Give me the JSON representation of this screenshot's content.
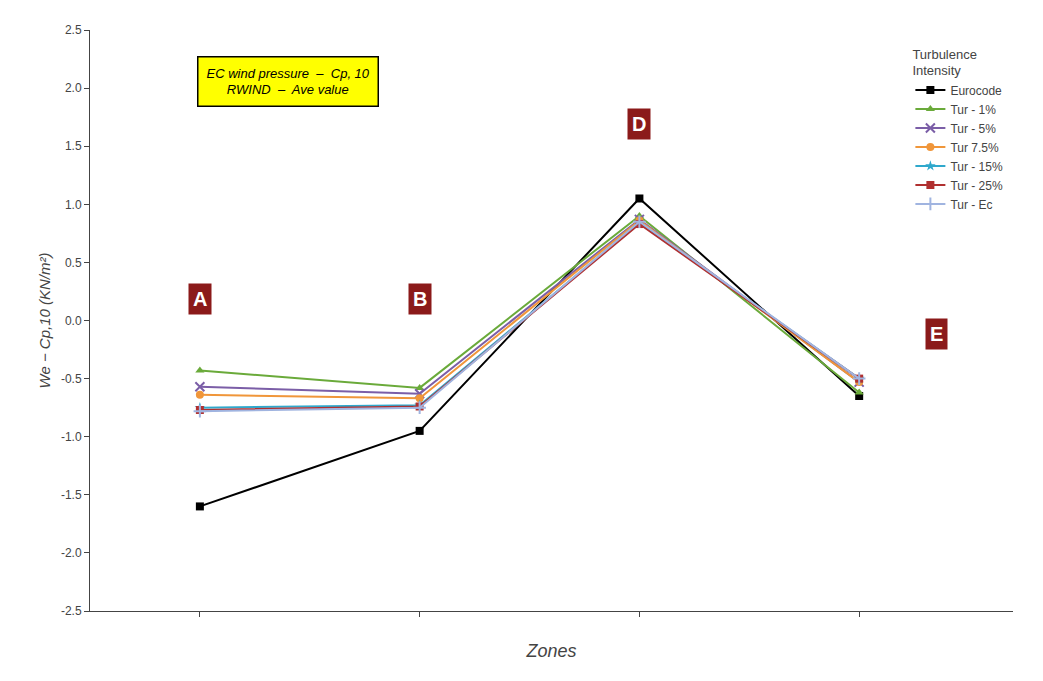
{
  "chart_data": {
    "type": "line",
    "x": [
      1,
      2,
      3,
      4
    ],
    "xlim": [
      0.5,
      4.7
    ],
    "xticks": [
      1,
      2,
      3,
      4
    ],
    "tick_labels": "y",
    "xlabel": "Zones",
    "ylabel": "We − Cp,10 (KN/m²)",
    "ylim": [
      -2.5,
      2.5
    ],
    "yticks": [
      -2.5,
      {
        "value": -2,
        "label": "-2.0"
      },
      -1.5,
      {
        "value": -1,
        "label": "-1.0"
      },
      -0.5,
      {
        "value": 0,
        "label": "0.0"
      },
      0.5,
      {
        "value": 1,
        "label": "1.0"
      },
      1.5,
      {
        "value": 2,
        "label": "2.0"
      },
      2.5
    ],
    "grid": false,
    "legend": "upper right",
    "legend_title": "Turbulence\nIntensity",
    "series": [
      {
        "name": "Eurocode",
        "color": "#000000",
        "marker": "square",
        "values": [
          -1.6,
          -0.95,
          1.05,
          -0.65
        ]
      },
      {
        "name": "Tur - 1%",
        "color": "#6aaa3a",
        "marker": "triangle",
        "values": [
          -0.43,
          -0.58,
          0.9,
          -0.62
        ]
      },
      {
        "name": "Tur - 5%",
        "color": "#7b5ea7",
        "marker": "x",
        "values": [
          -0.57,
          -0.63,
          0.87,
          -0.53
        ]
      },
      {
        "name": "Tur 7.5%",
        "color": "#f0963a",
        "marker": "circle",
        "values": [
          -0.64,
          -0.67,
          0.86,
          -0.53
        ]
      },
      {
        "name": "Tur - 15%",
        "color": "#2fa8cc",
        "marker": "star",
        "values": [
          -0.75,
          -0.73,
          0.84,
          -0.5
        ]
      },
      {
        "name": "Tur - 25%",
        "color": "#b03030",
        "marker": "square",
        "values": [
          -0.77,
          -0.74,
          0.83,
          -0.5
        ]
      },
      {
        "name": "Tur - Ec",
        "color": "#a0b4e0",
        "marker": "plus",
        "values": [
          -0.78,
          -0.75,
          0.85,
          -0.5
        ]
      }
    ],
    "annotations": [
      {
        "text": "A",
        "x": 1.0,
        "y": 0.05,
        "color": "#8b1a1a"
      },
      {
        "text": "B",
        "x": 2.0,
        "y": 0.05,
        "color": "#8b1a1a"
      },
      {
        "text": "D",
        "x": 3.0,
        "y": 1.55,
        "color": "#8b1a1a"
      },
      {
        "text": "E",
        "x": 4.35,
        "y": -0.25,
        "color": "#8b1a1a"
      },
      {
        "text": "EC wind pressure  –  Cp, 10\nRWIND  –  Ave value",
        "color": "#ffff00"
      }
    ]
  }
}
